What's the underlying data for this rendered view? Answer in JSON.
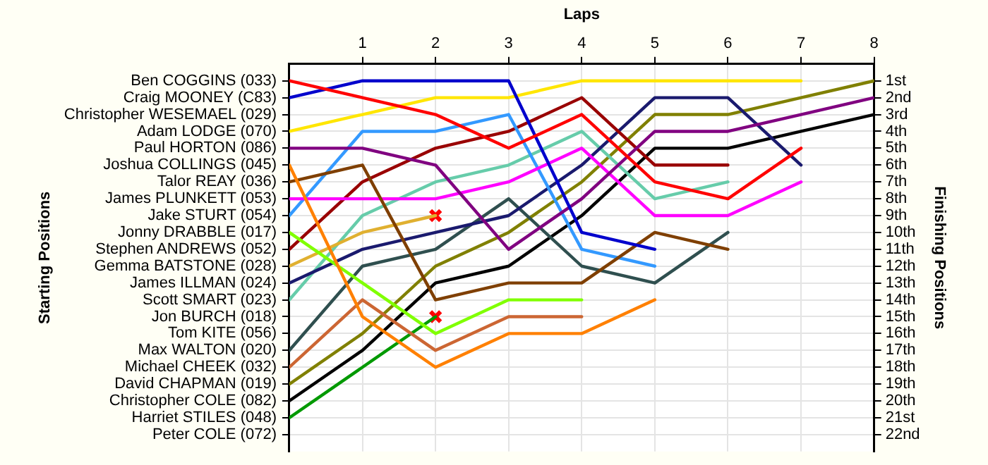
{
  "chart_data": {
    "type": "line",
    "xlabel": "Laps",
    "ylabel": "Finishing Positions",
    "x": [
      0,
      1,
      2,
      3,
      4,
      5,
      6,
      7,
      8
    ],
    "xlim": [
      0,
      8
    ],
    "xticks": [
      1,
      2,
      3,
      4,
      5,
      6,
      7,
      8
    ],
    "ylim": [
      23,
      0
    ],
    "yticks": [
      {
        "value": 1,
        "label": "1st"
      },
      {
        "value": 2,
        "label": "2nd"
      },
      {
        "value": 3,
        "label": "3rd"
      },
      {
        "value": 4,
        "label": "4th"
      },
      {
        "value": 5,
        "label": "5th"
      },
      {
        "value": 6,
        "label": "6th"
      },
      {
        "value": 7,
        "label": "7th"
      },
      {
        "value": 8,
        "label": "8th"
      },
      {
        "value": 9,
        "label": "9th"
      },
      {
        "value": 10,
        "label": "10th"
      },
      {
        "value": 11,
        "label": "11th"
      },
      {
        "value": 12,
        "label": "12th"
      },
      {
        "value": 13,
        "label": "13th"
      },
      {
        "value": 14,
        "label": "14th"
      },
      {
        "value": 15,
        "label": "15th"
      },
      {
        "value": 16,
        "label": "16th"
      },
      {
        "value": 17,
        "label": "17th"
      },
      {
        "value": 18,
        "label": "18th"
      },
      {
        "value": 19,
        "label": "19th"
      },
      {
        "value": 20,
        "label": "20th"
      },
      {
        "value": 21,
        "label": "21st"
      },
      {
        "value": 22,
        "label": "22nd"
      }
    ],
    "annotations": [
      "Starting Positions",
      "Ben COGGINS (033)",
      "Craig MOONEY (C83)",
      "Christopher WESEMAEL (029)",
      "Adam LODGE (070)",
      "Paul HORTON (086)",
      "Joshua COLLINGS (045)",
      "Talor REAY (036)",
      "James PLUNKETT (053)",
      "Jake STURT (054)",
      "Jonny DRABBLE (017)",
      "Stephen ANDREWS (052)",
      "Gemma BATSTONE (028)",
      "James ILLMAN (024)",
      "Scott SMART (023)",
      "Jon BURCH (018)",
      "Tom KITE (056)",
      "Max WALTON (020)",
      "Michael CHEEK (032)",
      "David CHAPMAN (019)",
      "Christopher COLE (082)",
      "Harriet STILES (048)",
      "Peter COLE (072)"
    ],
    "grid": true,
    "legend": false,
    "marker": "none",
    "line_style": "solid",
    "series": [
      {
        "color": "#ff0000",
        "values": [
          1,
          2,
          3,
          5,
          3,
          7,
          8,
          5,
          null
        ]
      },
      {
        "color": "#0000cc",
        "values": [
          2,
          1,
          1,
          1,
          10,
          11,
          null,
          null,
          null
        ]
      },
      {
        "color": "#ffe600",
        "values": [
          4,
          3,
          2,
          2,
          1,
          1,
          1,
          1,
          null
        ]
      },
      {
        "color": "#800080",
        "values": [
          5,
          5,
          6,
          11,
          8,
          4,
          4,
          3,
          2
        ]
      },
      {
        "color": "#ff8000",
        "values": [
          6,
          15,
          18,
          16,
          16,
          14,
          null,
          null,
          null
        ]
      },
      {
        "color": "#7f3f00",
        "values": [
          7,
          6,
          14,
          13,
          13,
          10,
          11,
          null,
          null
        ]
      },
      {
        "color": "#ff00ff",
        "values": [
          8,
          8,
          8,
          7,
          5,
          9,
          9,
          7,
          null
        ]
      },
      {
        "color": "#3399ff",
        "values": [
          9,
          4,
          4,
          3,
          11,
          12,
          null,
          null,
          null
        ]
      },
      {
        "color": "#80ff00",
        "values": [
          10,
          13,
          16,
          14,
          14,
          null,
          null,
          null,
          null
        ]
      },
      {
        "color": "#990000",
        "values": [
          11,
          7,
          5,
          4,
          2,
          6,
          6,
          null,
          null
        ]
      },
      {
        "color": "#e0b030",
        "values": [
          12,
          10,
          9,
          null,
          null,
          null,
          null,
          null,
          null
        ]
      },
      {
        "color": "#1a1a6e",
        "values": [
          13,
          11,
          10,
          9,
          6,
          2,
          2,
          6,
          null
        ]
      },
      {
        "color": "#66ccaa",
        "values": [
          14,
          9,
          7,
          6,
          4,
          8,
          7,
          null,
          null
        ]
      },
      {
        "color": "#2f4f4f",
        "values": [
          17,
          12,
          11,
          8,
          12,
          13,
          10,
          null,
          null
        ]
      },
      {
        "color": "#cc6633",
        "values": [
          18,
          14,
          17,
          15,
          15,
          null,
          null,
          null,
          null
        ]
      },
      {
        "color": "#808000",
        "values": [
          19,
          16,
          12,
          10,
          7,
          3,
          3,
          2,
          1
        ]
      },
      {
        "color": "#000000",
        "values": [
          20,
          17,
          13,
          12,
          9,
          5,
          5,
          4,
          3
        ]
      },
      {
        "color": "#009900",
        "values": [
          21,
          18,
          15,
          null,
          null,
          null,
          null,
          null,
          null
        ]
      },
      {
        "type": "scatter",
        "marker": "cross",
        "color": "#ff0000",
        "x": [
          2,
          2
        ],
        "values": [
          9,
          15
        ]
      }
    ]
  }
}
